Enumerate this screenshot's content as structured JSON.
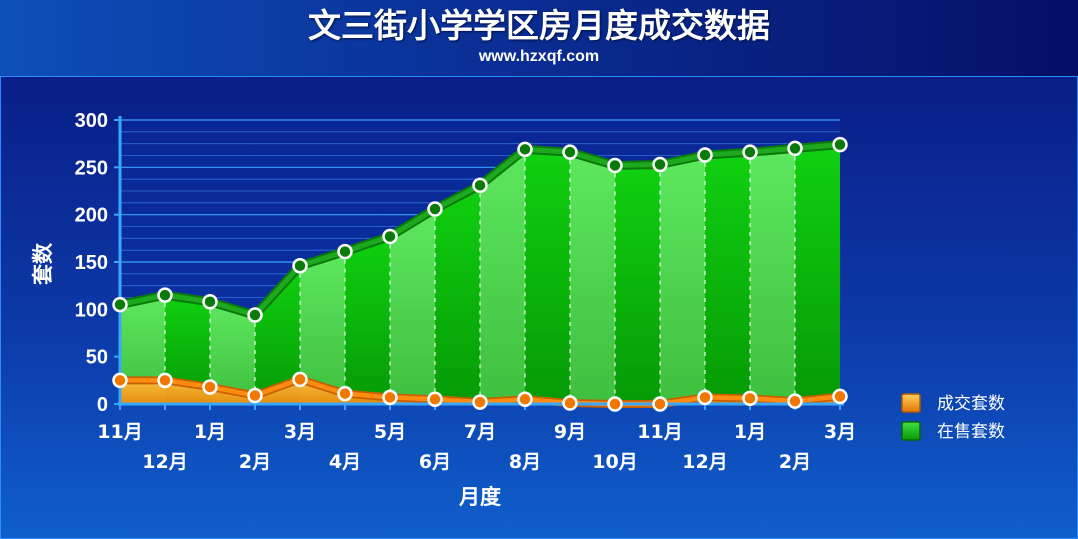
{
  "header": {
    "title": "文三街小学学区房月度成交数据",
    "subtitle": "www.hzxqf.com"
  },
  "chart_data": {
    "type": "area",
    "categories": [
      "11月",
      "12月",
      "1月",
      "2月",
      "3月",
      "4月",
      "5月",
      "6月",
      "7月",
      "8月",
      "9月",
      "10月",
      "11月",
      "12月",
      "1月",
      "2月",
      "3月"
    ],
    "xlabel": "月度",
    "ylabel": "套数",
    "ylim": [
      0,
      300
    ],
    "yticks": [
      0,
      50,
      100,
      150,
      200,
      250,
      300
    ],
    "grid": true,
    "legend_position": "right",
    "series": [
      {
        "name": "成交套数",
        "color": "#f08a0a",
        "values": [
          25,
          25,
          18,
          9,
          26,
          11,
          7,
          5,
          2,
          5,
          1,
          0,
          0,
          7,
          6,
          3,
          8
        ]
      },
      {
        "name": "在售套数",
        "color": "#10c010",
        "values": [
          105,
          115,
          108,
          94,
          146,
          161,
          177,
          206,
          231,
          269,
          266,
          252,
          253,
          263,
          266,
          270,
          274
        ]
      }
    ]
  }
}
